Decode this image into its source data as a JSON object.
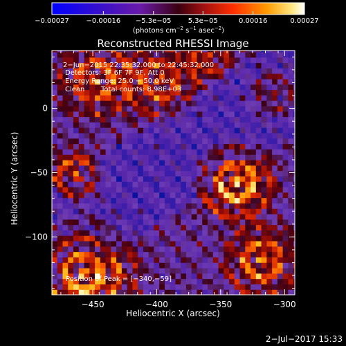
{
  "chart_data": {
    "type": "heatmap",
    "title": "Reconstructed RHESSI Image",
    "xlabel": "Heliocentric X (arcsec)",
    "ylabel": "Heliocentric Y (arcsec)",
    "xlim": [
      -482,
      -292
    ],
    "ylim": [
      -145,
      45
    ],
    "x_ticks": [
      -450,
      -400,
      -350,
      -300
    ],
    "y_ticks": [
      0,
      -50,
      -100
    ],
    "x_tick_labels": [
      "−450",
      "−400",
      "−350",
      "−300"
    ],
    "y_tick_labels": [
      "0",
      "−50",
      "−100"
    ],
    "colorbar": {
      "range": [
        -0.00027,
        0.00027
      ],
      "ticks": [
        -0.00027,
        -0.00016,
        -5.3e-05,
        5.3e-05,
        0.00016,
        0.00027
      ],
      "tick_labels": [
        "−0.00027",
        "−0.00016",
        "−5.3e−05",
        "5.3e−05",
        "0.00016",
        "0.00027"
      ],
      "unit_main": "(photons cm",
      "unit_sup1": "−2",
      "unit_mid": " s",
      "unit_sup2": "−1",
      "unit_mid2": " asec",
      "unit_sup3": "−2",
      "unit_end": ")"
    },
    "annotations": {
      "time_range": "2−Jun−2015 22:35:32.000 to 22:45:32.000",
      "detectors": "Detectors: 3F 6F 7F 9F, Att 0",
      "energy": "Energy Range: 25.0 − 50.0 keV",
      "clean": "Clean",
      "total_counts": "Total counts: 8.98E+03",
      "peak": "Position of Peak = [−340,−59]"
    },
    "peak_position": [
      -340,
      -59
    ],
    "footer_date": "2−Jul−2017 15:33"
  }
}
